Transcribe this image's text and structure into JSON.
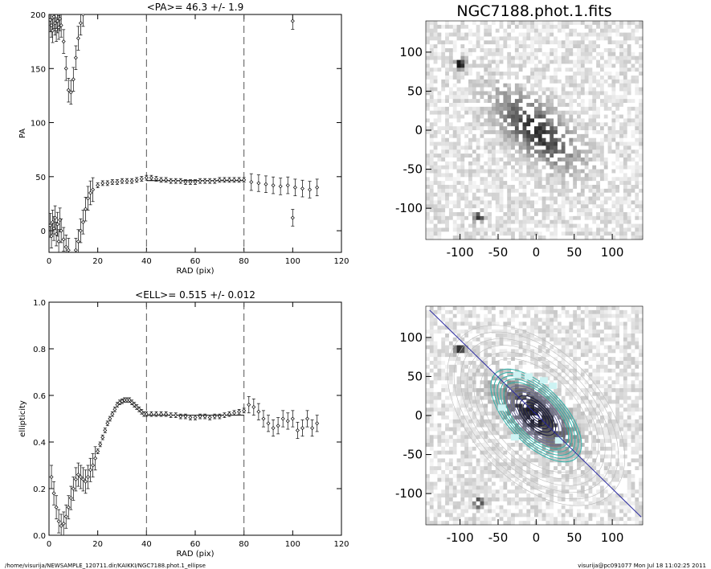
{
  "chart_data": [
    {
      "type": "scatter",
      "title": "<PA>=  46.3 +/-   1.9",
      "xlabel": "RAD (pix)",
      "ylabel": "PA",
      "xlim": [
        0,
        120
      ],
      "ylim": [
        -20,
        200
      ],
      "xticks": [
        0,
        20,
        40,
        60,
        80,
        100,
        120
      ],
      "yticks": [
        0,
        50,
        100,
        150,
        200
      ],
      "vlines": [
        40,
        80
      ],
      "hline": {
        "value": 46.3,
        "range": [
          40,
          80
        ]
      },
      "series": [
        {
          "values": [
            [
              0.5,
              195
            ],
            [
              1,
              190
            ],
            [
              1.5,
              185
            ],
            [
              2,
              198
            ],
            [
              2.5,
              192
            ],
            [
              3,
              186
            ],
            [
              3.5,
              194
            ],
            [
              4,
              188
            ],
            [
              4.5,
              196
            ],
            [
              5,
              190
            ],
            [
              6,
              175
            ],
            [
              7,
              150
            ],
            [
              8,
              130
            ],
            [
              9,
              128
            ],
            [
              10,
              140
            ],
            [
              11,
              160
            ],
            [
              12,
              178
            ],
            [
              13,
              192
            ],
            [
              14,
              200
            ],
            [
              0.5,
              5
            ],
            [
              1,
              -5
            ],
            [
              1.5,
              8
            ],
            [
              2,
              2
            ],
            [
              2.5,
              12
            ],
            [
              3,
              -3
            ],
            [
              3.5,
              6
            ],
            [
              4,
              -10
            ],
            [
              4.5,
              10
            ],
            [
              5,
              0
            ],
            [
              6,
              -8
            ],
            [
              7,
              -15
            ],
            [
              8,
              -18
            ],
            [
              11,
              -18
            ],
            [
              12,
              -10
            ],
            [
              13,
              0
            ],
            [
              14,
              8
            ],
            [
              15,
              20
            ],
            [
              16,
              30
            ],
            [
              17,
              35
            ],
            [
              18,
              38
            ],
            [
              20,
              42
            ],
            [
              22,
              44
            ],
            [
              24,
              44
            ],
            [
              26,
              45
            ],
            [
              28,
              45
            ],
            [
              30,
              46
            ],
            [
              32,
              46
            ],
            [
              34,
              46
            ],
            [
              36,
              47
            ],
            [
              38,
              48
            ],
            [
              40,
              49
            ],
            [
              42,
              49
            ],
            [
              44,
              48
            ],
            [
              46,
              47
            ],
            [
              48,
              47
            ],
            [
              50,
              46
            ],
            [
              52,
              46
            ],
            [
              54,
              46
            ],
            [
              56,
              45
            ],
            [
              58,
              45
            ],
            [
              60,
              45
            ],
            [
              62,
              46
            ],
            [
              64,
              46
            ],
            [
              66,
              46
            ],
            [
              68,
              46
            ],
            [
              70,
              47
            ],
            [
              72,
              47
            ],
            [
              74,
              47
            ],
            [
              76,
              47
            ],
            [
              78,
              47
            ],
            [
              80,
              47
            ],
            [
              83,
              45
            ],
            [
              86,
              44
            ],
            [
              89,
              43
            ],
            [
              92,
              42
            ],
            [
              95,
              41
            ],
            [
              98,
              42
            ],
            [
              101,
              40
            ],
            [
              104,
              39
            ],
            [
              107,
              38
            ],
            [
              110,
              40
            ],
            [
              100,
              194
            ],
            [
              100,
              12
            ]
          ]
        }
      ]
    },
    {
      "type": "scatter",
      "title": "<ELL>= 0.515 +/-  0.012",
      "xlabel": "RAD (pix)",
      "ylabel": "ellipticity",
      "xlim": [
        0,
        120
      ],
      "ylim": [
        0.0,
        1.0
      ],
      "xticks": [
        0,
        20,
        40,
        60,
        80,
        100,
        120
      ],
      "yticks": [
        0.0,
        0.2,
        0.4,
        0.6,
        0.8,
        1.0
      ],
      "vlines": [
        40,
        80
      ],
      "hline": {
        "value": 0.515,
        "range": [
          40,
          80
        ]
      },
      "series": [
        {
          "values": [
            [
              1,
              0.25
            ],
            [
              2,
              0.18
            ],
            [
              3,
              0.12
            ],
            [
              4,
              0.06
            ],
            [
              5,
              0.04
            ],
            [
              6,
              0.05
            ],
            [
              7,
              0.08
            ],
            [
              8,
              0.12
            ],
            [
              9,
              0.16
            ],
            [
              10,
              0.2
            ],
            [
              11,
              0.24
            ],
            [
              12,
              0.26
            ],
            [
              13,
              0.25
            ],
            [
              14,
              0.24
            ],
            [
              15,
              0.23
            ],
            [
              16,
              0.25
            ],
            [
              17,
              0.28
            ],
            [
              18,
              0.3
            ],
            [
              19,
              0.33
            ],
            [
              20,
              0.36
            ],
            [
              21,
              0.39
            ],
            [
              22,
              0.42
            ],
            [
              23,
              0.45
            ],
            [
              24,
              0.48
            ],
            [
              25,
              0.5
            ],
            [
              26,
              0.52
            ],
            [
              27,
              0.54
            ],
            [
              28,
              0.56
            ],
            [
              29,
              0.57
            ],
            [
              30,
              0.575
            ],
            [
              31,
              0.58
            ],
            [
              32,
              0.58
            ],
            [
              33,
              0.58
            ],
            [
              34,
              0.57
            ],
            [
              35,
              0.56
            ],
            [
              36,
              0.55
            ],
            [
              37,
              0.54
            ],
            [
              38,
              0.53
            ],
            [
              39,
              0.52
            ],
            [
              40,
              0.52
            ],
            [
              42,
              0.52
            ],
            [
              44,
              0.52
            ],
            [
              46,
              0.52
            ],
            [
              48,
              0.52
            ],
            [
              50,
              0.515
            ],
            [
              52,
              0.515
            ],
            [
              54,
              0.51
            ],
            [
              56,
              0.51
            ],
            [
              58,
              0.505
            ],
            [
              60,
              0.505
            ],
            [
              62,
              0.51
            ],
            [
              64,
              0.51
            ],
            [
              66,
              0.505
            ],
            [
              68,
              0.51
            ],
            [
              70,
              0.51
            ],
            [
              72,
              0.515
            ],
            [
              74,
              0.52
            ],
            [
              76,
              0.525
            ],
            [
              78,
              0.53
            ],
            [
              80,
              0.535
            ],
            [
              82,
              0.56
            ],
            [
              84,
              0.55
            ],
            [
              86,
              0.53
            ],
            [
              88,
              0.5
            ],
            [
              90,
              0.48
            ],
            [
              92,
              0.46
            ],
            [
              94,
              0.47
            ],
            [
              96,
              0.5
            ],
            [
              98,
              0.49
            ],
            [
              100,
              0.5
            ],
            [
              102,
              0.45
            ],
            [
              104,
              0.46
            ],
            [
              106,
              0.5
            ],
            [
              108,
              0.46
            ],
            [
              110,
              0.48
            ]
          ]
        }
      ]
    },
    {
      "type": "heatmap",
      "title": "NGC7188.phot.1.fits",
      "xlim": [
        -145,
        140
      ],
      "ylim": [
        -140,
        140
      ],
      "xticks": [
        -100,
        -50,
        0,
        50,
        100
      ],
      "yticks": [
        -100,
        -50,
        0,
        50,
        100
      ]
    },
    {
      "type": "heatmap",
      "title": "",
      "xlim": [
        -145,
        140
      ],
      "ylim": [
        -140,
        140
      ],
      "xticks": [
        -100,
        -50,
        0,
        50,
        100
      ],
      "yticks": [
        -100,
        -50,
        0,
        50,
        100
      ]
    }
  ],
  "footer": {
    "left": "/home/visurija/NEWSAMPLE_120711.dir/KAIKKI/NGC7188.phot.1_ellipse",
    "right": "visurija@pc091077  Mon Jul 18 11:02:25 2011"
  }
}
